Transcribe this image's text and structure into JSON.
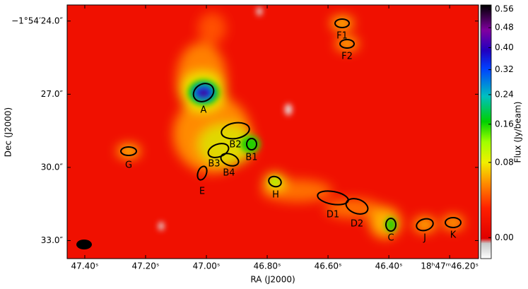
{
  "chart_data": {
    "type": "image",
    "xlabel": "RA (J2000)",
    "ylabel": "Dec (J2000)",
    "colorbar_label": "Flux (Jy/beam)",
    "xlim": [
      47.458,
      46.105
    ],
    "xticks": [
      {
        "value": 47.4,
        "label": "47.40ˢ"
      },
      {
        "value": 47.2,
        "label": "47.20ˢ"
      },
      {
        "value": 47.0,
        "label": "47.00ˢ"
      },
      {
        "value": 46.8,
        "label": "46.80ˢ"
      },
      {
        "value": 46.6,
        "label": "46.60ˢ"
      },
      {
        "value": 46.4,
        "label": "46.40ˢ"
      },
      {
        "value": 46.2,
        "label": "18ʰ47ᵐ46.20ˢ"
      }
    ],
    "ylim": [
      23.34,
      33.74
    ],
    "yticks": [
      {
        "value": 24,
        "label": "−1°54′24.0″"
      },
      {
        "value": 27,
        "label": "27.0″"
      },
      {
        "value": 30,
        "label": "30.0″"
      },
      {
        "value": 33,
        "label": "33.0″"
      }
    ],
    "colorbar_scale": "sqrt",
    "clim": [
      -0.004,
      0.58
    ],
    "colorbar_ticks": [
      {
        "value": 0.56,
        "label": "0.56"
      },
      {
        "value": 0.48,
        "label": "0.48"
      },
      {
        "value": 0.4,
        "label": "0.40"
      },
      {
        "value": 0.32,
        "label": "0.32"
      },
      {
        "value": 0.24,
        "label": "0.24"
      },
      {
        "value": 0.16,
        "label": "0.16"
      },
      {
        "value": 0.08,
        "label": "0.08"
      },
      {
        "value": 0,
        "label": "0.00"
      }
    ],
    "sources": [
      {
        "label": "A"
      },
      {
        "label": "B1"
      },
      {
        "label": "B2"
      },
      {
        "label": "B3"
      },
      {
        "label": "B4"
      },
      {
        "label": "C"
      },
      {
        "label": "D1"
      },
      {
        "label": "D2"
      },
      {
        "label": "E"
      },
      {
        "label": "F1"
      },
      {
        "label": "F2"
      },
      {
        "label": "G"
      },
      {
        "label": "H"
      },
      {
        "label": "J"
      },
      {
        "label": "K"
      }
    ]
  }
}
